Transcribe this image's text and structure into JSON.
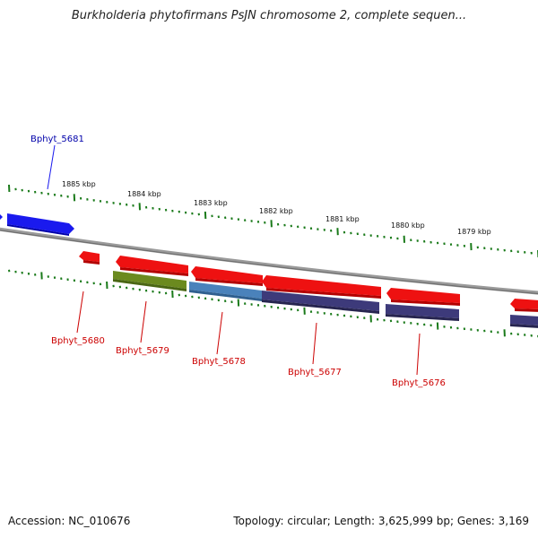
{
  "title": "Burkholderia phytofirmans PsJN chromosome 2, complete sequen...",
  "footer": {
    "accession": "Accession: NC_010676",
    "summary": "Topology: circular; Length: 3,625,999 bp; Genes: 3,169"
  },
  "colors": {
    "backbone": "#8a8a8a",
    "tick": "#1a7a1a",
    "forward_gene": "#1a1aee",
    "reverse_gene": "#ee1111",
    "cds_olive": "#6b8a1f",
    "cds_steel": "#4a82bb",
    "cds_purple": "#3d3a7a",
    "label_blue": "#0000aa",
    "label_red": "#cc0000"
  },
  "scale_labels": [
    "1885 kbp",
    "1884 kbp",
    "1883 kbp",
    "1882 kbp",
    "1881 kbp",
    "1880 kbp",
    "1879 kbp"
  ],
  "genes": [
    {
      "label": "Bphyt_5681",
      "strand": "forward"
    },
    {
      "label": "Bphyt_5680",
      "strand": "reverse"
    },
    {
      "label": "Bphyt_5679",
      "strand": "reverse"
    },
    {
      "label": "Bphyt_5678",
      "strand": "reverse"
    },
    {
      "label": "Bphyt_5677",
      "strand": "reverse"
    },
    {
      "label": "Bphyt_5676",
      "strand": "reverse"
    }
  ]
}
